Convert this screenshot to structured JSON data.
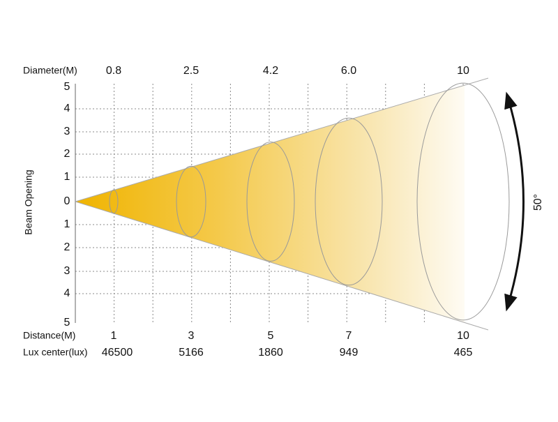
{
  "diameter": {
    "label": "Diameter(M)",
    "values": [
      "0.8",
      "2.5",
      "4.2",
      "6.0",
      "10"
    ]
  },
  "beam_opening": {
    "label": "Beam Opening",
    "ticks": [
      "5",
      "4",
      "3",
      "2",
      "1",
      "0",
      "1",
      "2",
      "3",
      "4",
      "5"
    ]
  },
  "distance": {
    "label": "Distance(M)",
    "values": [
      "1",
      "3",
      "5",
      "7",
      "10"
    ]
  },
  "lux_center": {
    "label": "Lux center(lux)",
    "values": [
      "46500",
      "5166",
      "1860",
      "949",
      "465"
    ]
  },
  "angle": "50°"
}
